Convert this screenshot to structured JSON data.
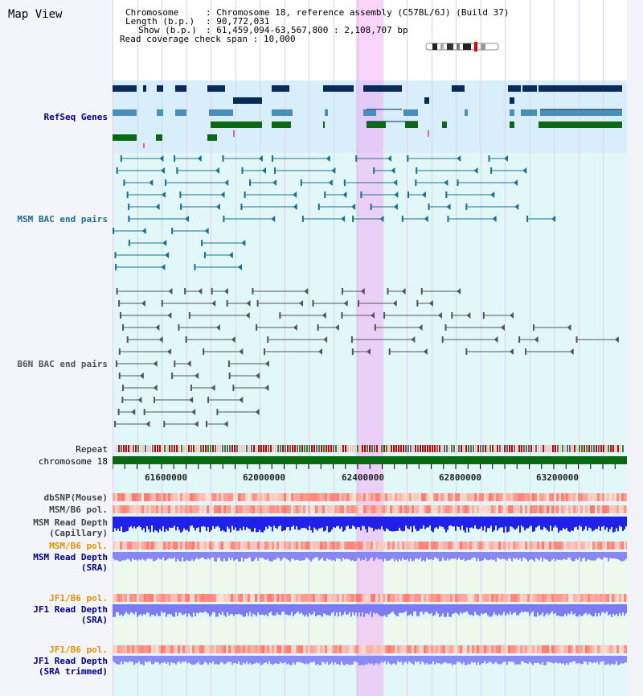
{
  "window": {
    "title": "Map View"
  },
  "header": {
    "chromosome_label": "Chromosome",
    "chromosome_value": "Chromosome 18, reference assembly (C57BL/6J) (Build 37)",
    "length_label": "Length (b.p.)",
    "length_value": "90,772,031",
    "show_label": "Show (b.p.)",
    "show_value": "61,459,094-63,567,800 : 2,108,707 bp",
    "coverage_label": "Read coverage check span",
    "coverage_value": "10,000"
  },
  "tracks": {
    "refseq": "RefSeq Genes",
    "msm_bac": "MSM BAC end pairs",
    "b6n_bac": "B6N BAC end pairs",
    "repeat": "Repeat",
    "chromosome": "chromosome 18",
    "dbsnp": "dbSNP(Mouse)",
    "msm_b6_pol": "MSM/B6 pol.",
    "msm_depth_cap_1": "MSM Read Depth",
    "msm_depth_cap_2": "(Capillary)",
    "msm_b6_pol_2": "MSM/B6 pol.",
    "msm_depth_sra_1": "MSM Read Depth",
    "msm_depth_sra_2": "(SRA)",
    "jf1_b6_pol": "JF1/B6 pol.",
    "jf1_depth_sra_1": "JF1 Read Depth",
    "jf1_depth_sra_2": "(SRA)",
    "jf1_b6_pol_2": "JF1/B6 pol.",
    "jf1_depth_trim_1": "JF1 Read Depth",
    "jf1_depth_trim_2": "(SRA trimmed)"
  },
  "axis": {
    "ticks": [
      "61600000",
      "62000000",
      "62400000",
      "62800000",
      "63200000"
    ]
  },
  "colors": {
    "refseq_bg": "#d8eefa",
    "bac_bg": "#e2f8f8",
    "gene_dark": "#0a2a5a",
    "gene_mid": "#4a8fb8",
    "gene_green": "#0a6a14",
    "msm_bac": "#1a7090",
    "b6n_bac": "#555555",
    "chromosome": "#0a6a14",
    "highlight": "#f5a0f5",
    "label_blue": "#00008b",
    "label_orange": "#e89000"
  }
}
